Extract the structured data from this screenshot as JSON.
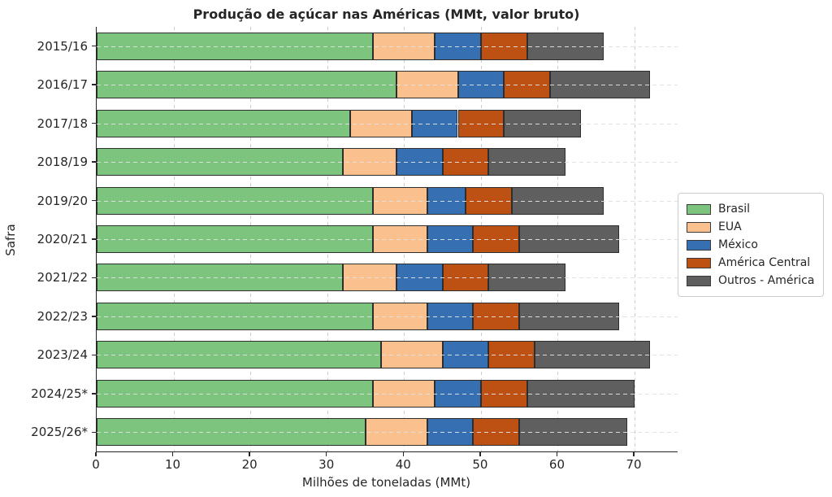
{
  "title": "Produção de açúcar nas Américas (MMt, valor bruto)",
  "chart_data": {
    "type": "bar",
    "orientation": "horizontal",
    "stacked": true,
    "title": "Produção de açúcar nas Américas (MMt, valor bruto)",
    "xlabel": "Milhões de toneladas (MMt)",
    "ylabel": "Safra",
    "categories": [
      "2015/16",
      "2016/17",
      "2017/18",
      "2018/19",
      "2019/20",
      "2020/21",
      "2021/22",
      "2022/23",
      "2023/24",
      "2024/25*",
      "2025/26*"
    ],
    "series": [
      {
        "name": "Brasil",
        "color": "#7DC57E",
        "values": [
          36,
          39,
          33,
          32,
          36,
          36,
          32,
          36,
          37,
          36,
          35
        ]
      },
      {
        "name": "EUA",
        "color": "#FAC08D",
        "values": [
          8,
          8,
          8,
          7,
          7,
          7,
          7,
          7,
          8,
          8,
          8
        ]
      },
      {
        "name": "México",
        "color": "#3670B3",
        "values": [
          6,
          6,
          6,
          6,
          5,
          6,
          6,
          6,
          6,
          6,
          6
        ]
      },
      {
        "name": "América Central",
        "color": "#BC5113",
        "values": [
          6,
          6,
          6,
          6,
          6,
          6,
          6,
          6,
          6,
          6,
          6
        ]
      },
      {
        "name": "Outros - América",
        "color": "#5F5F5F",
        "values": [
          10,
          13,
          10,
          10,
          12,
          13,
          10,
          13,
          15,
          14,
          14
        ]
      }
    ],
    "totals": [
      66,
      72,
      63,
      61,
      66,
      68,
      61,
      68,
      72,
      70,
      69
    ],
    "xlim": [
      0,
      75.6
    ],
    "xticks": [
      "0",
      "10",
      "20",
      "30",
      "40",
      "50",
      "60",
      "70"
    ],
    "grid": true,
    "legend_position": "right-outside"
  },
  "colors": {
    "background": "#ffffff",
    "text": "#262626",
    "grid": "#cccccc",
    "spine": "#262626",
    "bar_edge": "#2e2e2e",
    "legend_border": "#cccccc"
  }
}
